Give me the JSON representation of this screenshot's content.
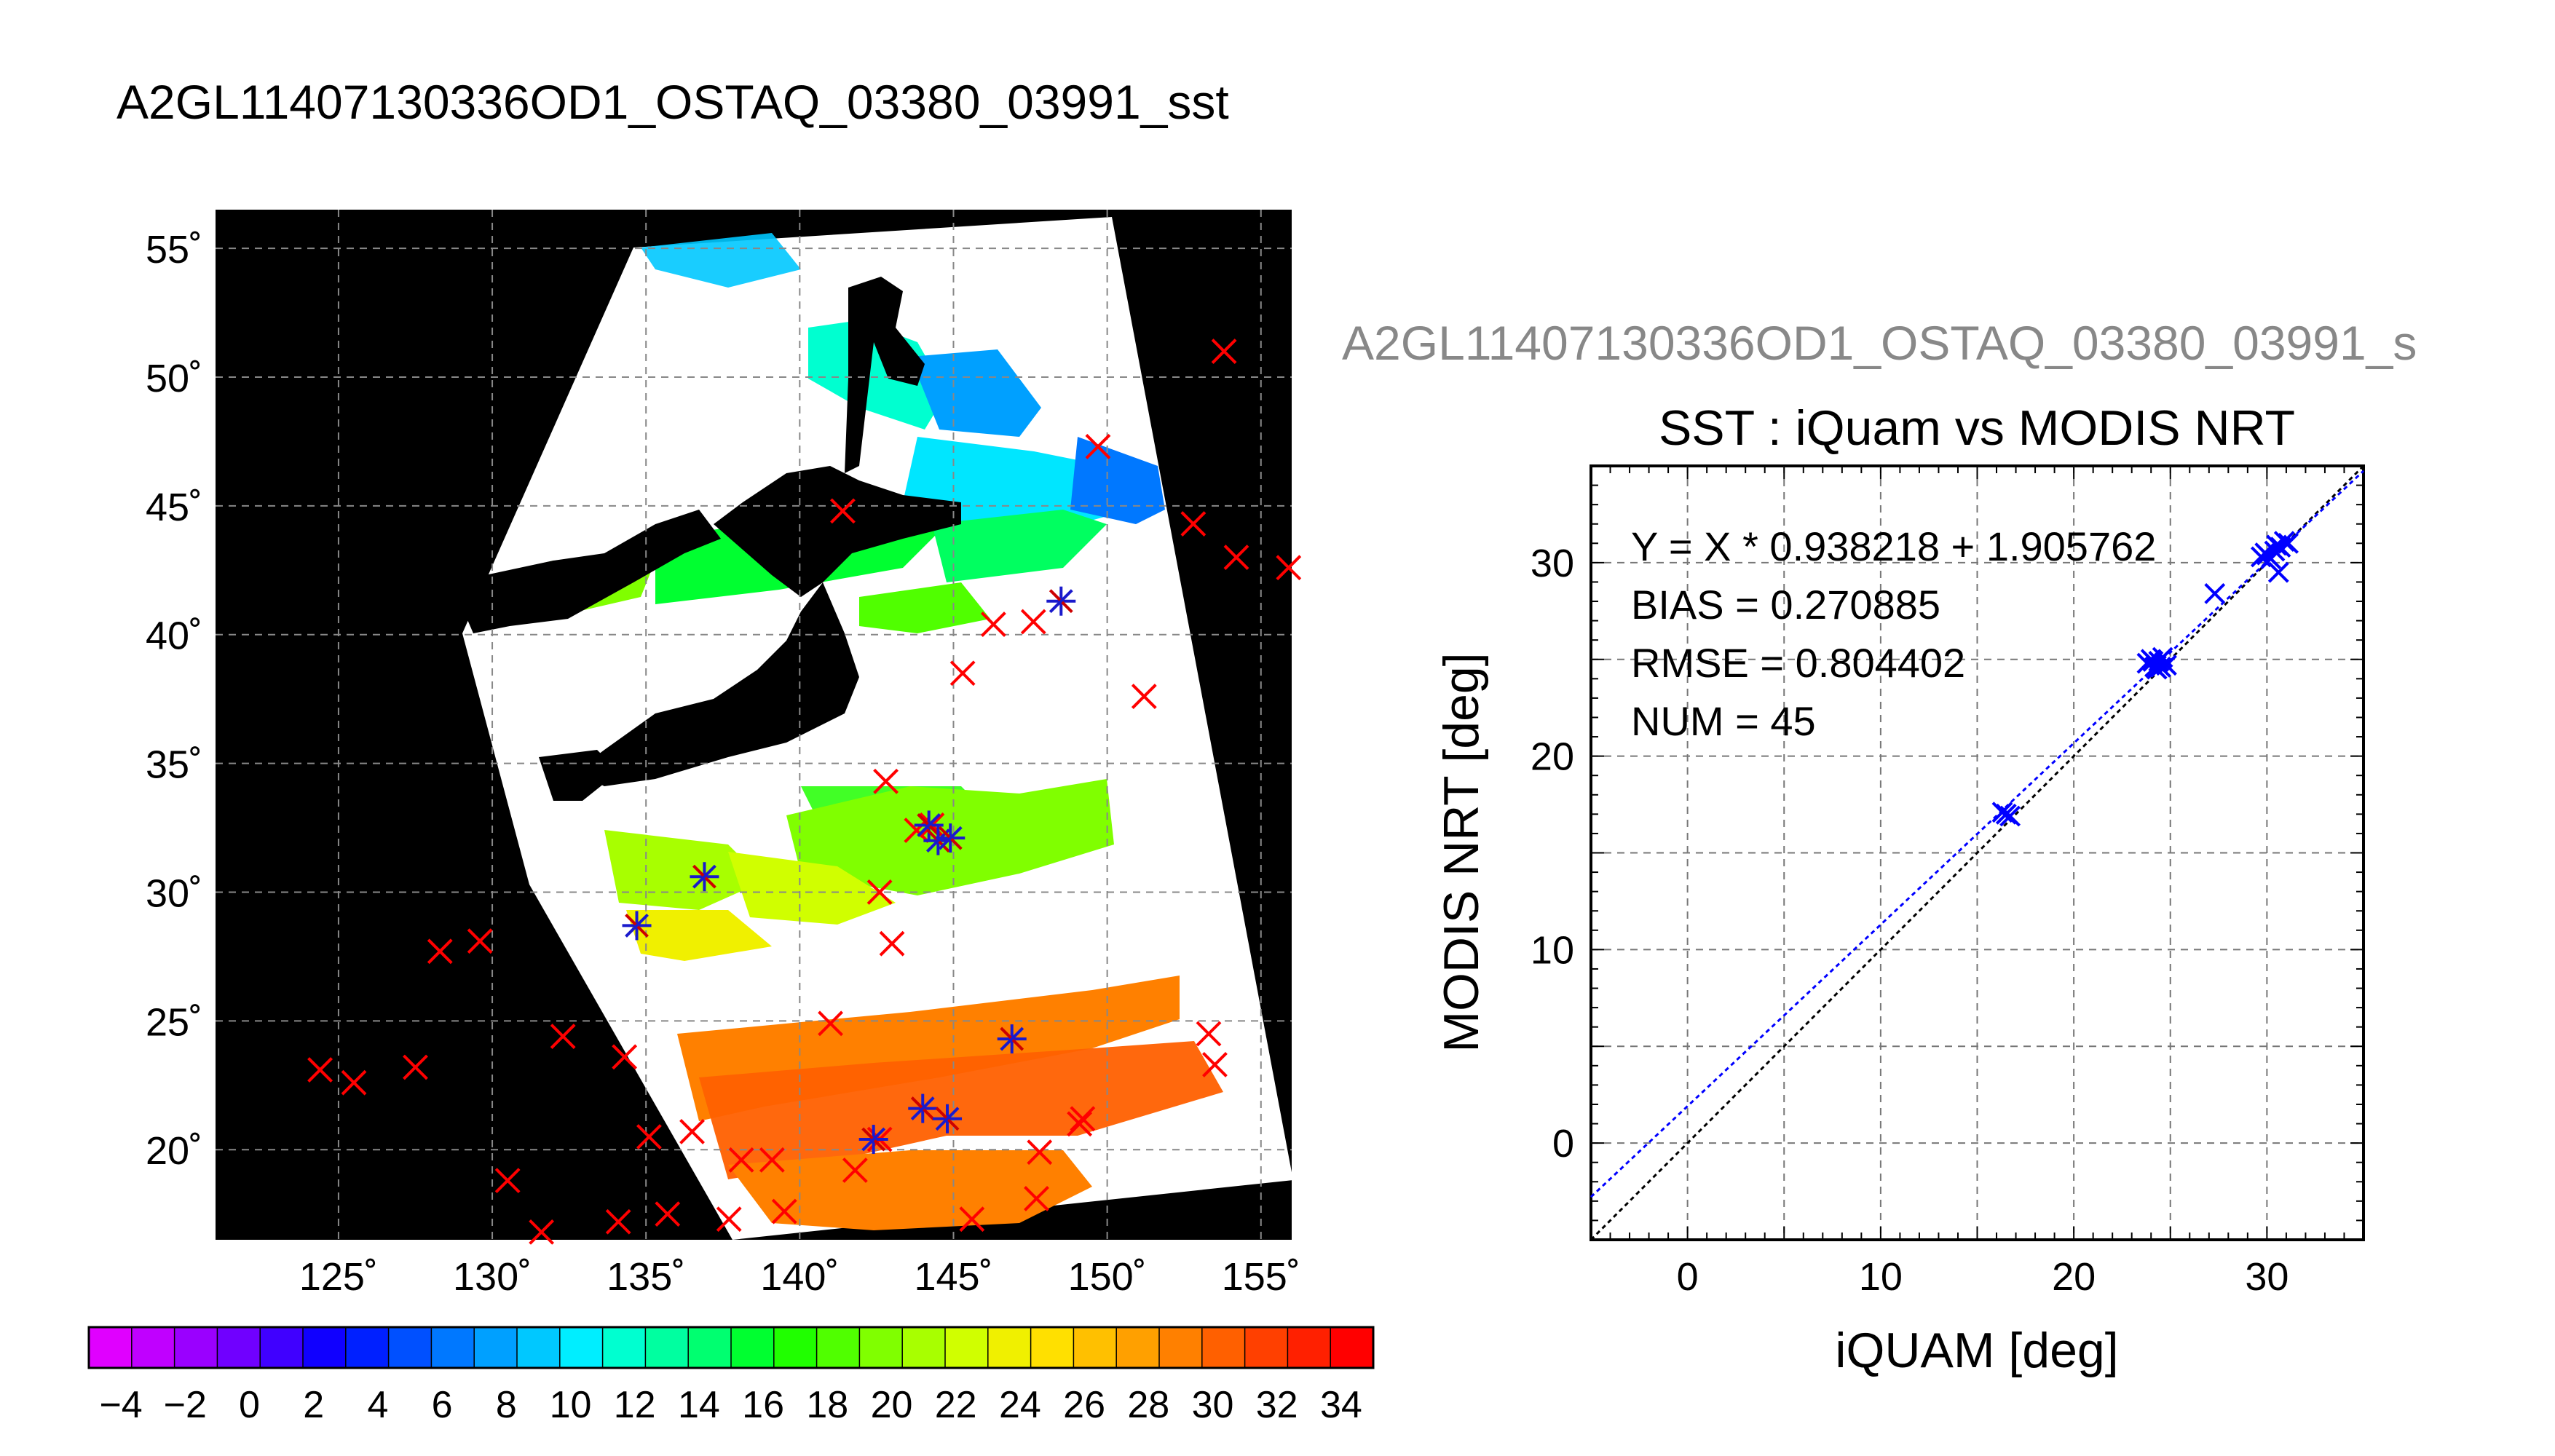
{
  "main_title": "A2GL11407130336OD1_OSTAQ_03380_03991_sst",
  "map": {
    "lon_ticks": [
      "125˚",
      "130˚",
      "135˚",
      "140˚",
      "145˚",
      "150˚",
      "155˚"
    ],
    "lat_ticks": [
      "55˚",
      "50˚",
      "45˚",
      "40˚",
      "35˚",
      "30˚",
      "25˚",
      "20˚"
    ],
    "lon_range": [
      121,
      156
    ],
    "lat_range": [
      16.5,
      56.5
    ],
    "in_situ_obs": [
      [
        153.8,
        51.0
      ],
      [
        149.7,
        47.3
      ],
      [
        141.4,
        44.8
      ],
      [
        152.8,
        44.3
      ],
      [
        154.2,
        43.0
      ],
      [
        155.9,
        42.6
      ],
      [
        146.3,
        40.4
      ],
      [
        147.6,
        40.5
      ],
      [
        145.3,
        38.5
      ],
      [
        151.2,
        37.6
      ],
      [
        142.8,
        34.3
      ],
      [
        142.6,
        30.0
      ],
      [
        143.0,
        28.0
      ],
      [
        128.3,
        27.7
      ],
      [
        129.6,
        28.1
      ],
      [
        124.4,
        23.1
      ],
      [
        125.5,
        22.6
      ],
      [
        127.5,
        23.2
      ],
      [
        132.3,
        24.4
      ],
      [
        134.3,
        23.6
      ],
      [
        135.1,
        20.5
      ],
      [
        136.5,
        20.7
      ],
      [
        130.5,
        18.8
      ],
      [
        131.6,
        16.8
      ],
      [
        134.1,
        17.2
      ],
      [
        135.7,
        17.5
      ],
      [
        137.7,
        17.3
      ],
      [
        138.1,
        19.6
      ],
      [
        139.1,
        19.6
      ],
      [
        139.5,
        17.6
      ],
      [
        141.8,
        19.2
      ],
      [
        141.0,
        24.9
      ],
      [
        142.6,
        20.4
      ],
      [
        145.6,
        17.3
      ],
      [
        147.7,
        18.1
      ],
      [
        147.8,
        19.9
      ],
      [
        149.1,
        21.0
      ],
      [
        149.2,
        21.2
      ],
      [
        153.5,
        23.3
      ],
      [
        153.3,
        24.5
      ],
      [
        143.8,
        32.4
      ],
      [
        144.3,
        32.6
      ]
    ],
    "matchups": [
      [
        148.5,
        41.3
      ],
      [
        136.9,
        30.6
      ],
      [
        134.7,
        28.7
      ],
      [
        144.2,
        32.6
      ],
      [
        144.5,
        32.0
      ],
      [
        144.9,
        32.1
      ],
      [
        146.9,
        24.3
      ],
      [
        144.0,
        21.6
      ],
      [
        144.8,
        21.2
      ],
      [
        142.4,
        20.4
      ]
    ]
  },
  "colorbar": {
    "labels": [
      "−4",
      "−2",
      "0",
      "2",
      "4",
      "6",
      "8",
      "10",
      "12",
      "14",
      "16",
      "18",
      "20",
      "22",
      "24",
      "26",
      "28",
      "30",
      "32",
      "34"
    ],
    "range": [
      -5,
      35
    ],
    "colors": [
      "#e000ff",
      "#c000ff",
      "#9a00ff",
      "#7000ff",
      "#4000ff",
      "#1000ff",
      "#0020ff",
      "#0050ff",
      "#0078ff",
      "#00a0ff",
      "#00c8ff",
      "#00eeff",
      "#00ffd0",
      "#00ffa0",
      "#00ff70",
      "#00ff30",
      "#20ff00",
      "#50ff00",
      "#80ff00",
      "#a8ff00",
      "#d0ff00",
      "#f0f000",
      "#ffe000",
      "#ffc000",
      "#ffa000",
      "#ff8000",
      "#ff6000",
      "#ff4000",
      "#ff2000",
      "#ff0000"
    ]
  },
  "chart_data": {
    "type": "scatter",
    "overlay_title": "A2GL11407130336OD1_OSTAQ_03380_03991_s",
    "title": "SST : iQuam vs MODIS NRT",
    "xlabel": "iQUAM [deg]",
    "ylabel": "MODIS NRT [deg]",
    "xlim": [
      -5,
      35
    ],
    "ylim": [
      -5,
      35
    ],
    "xticks": [
      0,
      10,
      20,
      30
    ],
    "yticks": [
      0,
      10,
      20,
      30
    ],
    "grid": true,
    "stats": [
      "Y = X * 0.938218 + 1.905762",
      "BIAS = 0.270885",
      "RMSE = 0.804402",
      "NUM = 45"
    ],
    "fit": {
      "slope": 0.938218,
      "intercept": 1.905762
    },
    "points": [
      [
        16.3,
        17.1
      ],
      [
        16.5,
        17.0
      ],
      [
        16.7,
        16.9
      ],
      [
        23.8,
        24.8
      ],
      [
        24.0,
        25.0
      ],
      [
        24.2,
        24.6
      ],
      [
        24.4,
        24.9
      ],
      [
        24.6,
        25.1
      ],
      [
        24.8,
        24.7
      ],
      [
        24.3,
        24.5
      ],
      [
        24.1,
        24.9
      ],
      [
        24.5,
        24.6
      ],
      [
        27.3,
        28.4
      ],
      [
        29.7,
        30.3
      ],
      [
        29.9,
        30.5
      ],
      [
        30.2,
        30.2
      ],
      [
        30.4,
        30.6
      ],
      [
        30.6,
        29.5
      ],
      [
        30.7,
        30.8
      ],
      [
        30.9,
        31.1
      ],
      [
        31.1,
        31.0
      ],
      [
        30.5,
        30.9
      ],
      [
        30.0,
        30.4
      ]
    ],
    "point_color": "#0000ff",
    "fit_line_color": "#0000ff",
    "identity_line_color": "#000000"
  }
}
